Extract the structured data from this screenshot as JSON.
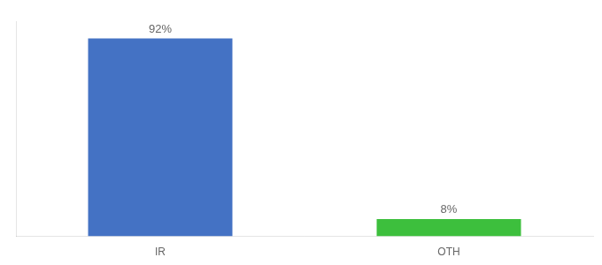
{
  "chart_data": {
    "type": "bar",
    "categories": [
      "IR",
      "OTH"
    ],
    "values": [
      92,
      8
    ],
    "value_labels": [
      "92%",
      "8%"
    ],
    "data_labels": true,
    "colors": [
      "#4472c4",
      "#3dbf3d"
    ],
    "ylim": [
      0,
      100
    ],
    "tick_labels": "x",
    "grid": false
  }
}
